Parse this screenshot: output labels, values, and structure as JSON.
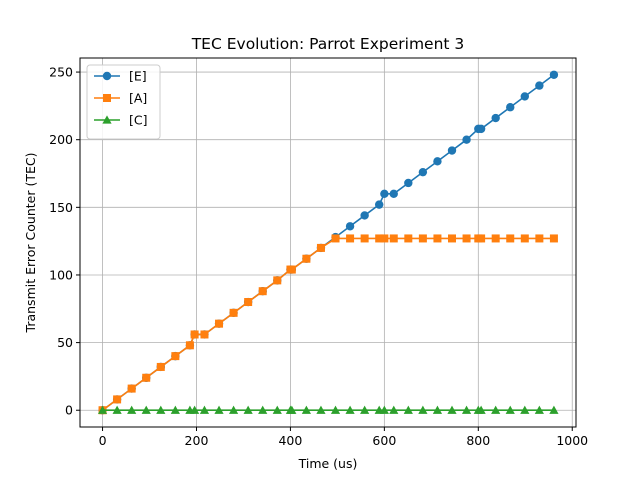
{
  "chart_data": {
    "type": "line",
    "title": "TEC Evolution: Parrot Experiment 3",
    "xlabel": "Time (us)",
    "ylabel": "Transmit Error Counter (TEC)",
    "xlim": [
      -48,
      1008
    ],
    "ylim": [
      -12.4,
      260.4
    ],
    "xticks": [
      0,
      200,
      400,
      600,
      800,
      1000
    ],
    "yticks": [
      0,
      50,
      100,
      150,
      200,
      250
    ],
    "grid": true,
    "legend_position": "upper-left",
    "series": [
      {
        "name": "[E]",
        "color": "#1f77b4",
        "marker": "circle",
        "x": [
          0,
          31,
          62,
          93,
          124,
          155,
          186,
          196,
          217,
          248,
          279,
          310,
          341,
          372,
          400,
          403,
          434,
          465,
          496,
          527,
          558,
          589,
          600,
          620,
          651,
          682,
          713,
          744,
          775,
          800,
          806,
          837,
          868,
          899,
          930,
          961
        ],
        "y": [
          0,
          8,
          16,
          24,
          32,
          40,
          48,
          56,
          56,
          64,
          72,
          80,
          88,
          96,
          104,
          104,
          112,
          120,
          128,
          136,
          144,
          152,
          160,
          160,
          168,
          176,
          184,
          192,
          200,
          208,
          208,
          216,
          224,
          232,
          240,
          248
        ]
      },
      {
        "name": "[A]",
        "color": "#ff7f0e",
        "marker": "square",
        "x": [
          0,
          31,
          62,
          93,
          124,
          155,
          186,
          196,
          217,
          248,
          279,
          310,
          341,
          372,
          400,
          403,
          434,
          465,
          496,
          527,
          558,
          589,
          600,
          620,
          651,
          682,
          713,
          744,
          775,
          800,
          806,
          837,
          868,
          899,
          930,
          961
        ],
        "y": [
          0,
          8,
          16,
          24,
          32,
          40,
          48,
          56,
          56,
          64,
          72,
          80,
          88,
          96,
          104,
          104,
          112,
          120,
          127,
          127,
          127,
          127,
          127,
          127,
          127,
          127,
          127,
          127,
          127,
          127,
          127,
          127,
          127,
          127,
          127,
          127
        ]
      },
      {
        "name": "[C]",
        "color": "#2ca02c",
        "marker": "triangle",
        "x": [
          0,
          31,
          62,
          93,
          124,
          155,
          186,
          196,
          217,
          248,
          279,
          310,
          341,
          372,
          400,
          403,
          434,
          465,
          496,
          527,
          558,
          589,
          600,
          620,
          651,
          682,
          713,
          744,
          775,
          800,
          806,
          837,
          868,
          899,
          930,
          961
        ],
        "y": [
          0,
          0,
          0,
          0,
          0,
          0,
          0,
          0,
          0,
          0,
          0,
          0,
          0,
          0,
          0,
          0,
          0,
          0,
          0,
          0,
          0,
          0,
          0,
          0,
          0,
          0,
          0,
          0,
          0,
          0,
          0,
          0,
          0,
          0,
          0,
          0
        ]
      }
    ]
  }
}
